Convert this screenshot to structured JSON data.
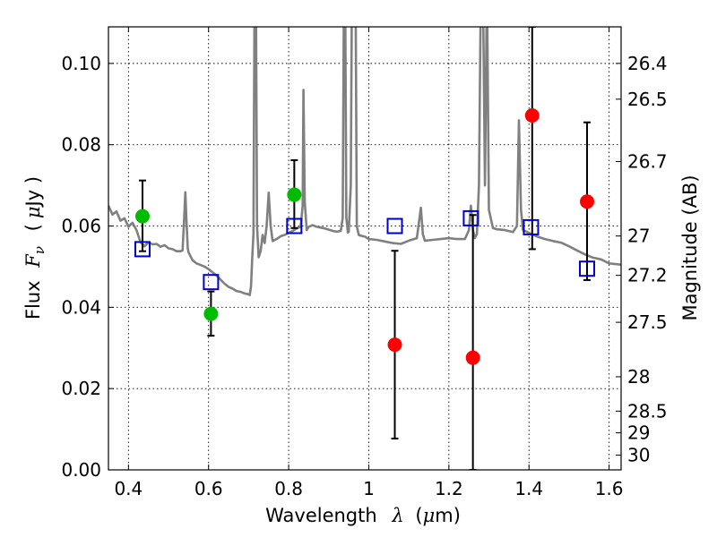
{
  "chart_data": {
    "type": "scatter",
    "xlabel": {
      "text": "Wavelength",
      "symbol": "λ",
      "unit_open": "(",
      "unit_mu": "μ",
      "unit_rest": "m)"
    },
    "ylabel": {
      "text": "Flux",
      "symbol": "F",
      "subscript": "ν",
      "unit_open": "(",
      "unit_mu": "μ",
      "unit_rest": "Jy )"
    },
    "y2label": "Magnitude (AB)",
    "xlim": [
      0.35,
      1.63
    ],
    "ylim": [
      0.0,
      0.109
    ],
    "x_ticks": [
      0.4,
      0.6,
      0.8,
      1.0,
      1.2,
      1.4,
      1.6
    ],
    "x_tick_labels": [
      "0.4",
      "0.6",
      "0.8",
      "1",
      "1.2",
      "1.4",
      "1.6"
    ],
    "y_ticks": [
      0.0,
      0.02,
      0.04,
      0.06,
      0.08,
      0.1
    ],
    "y_tick_labels": [
      "0.00",
      "0.02",
      "0.04",
      "0.06",
      "0.08",
      "0.10"
    ],
    "y2_ticks": [
      {
        "label": "26.4",
        "mag": 26.4
      },
      {
        "label": "26.5",
        "mag": 26.5
      },
      {
        "label": "26.7",
        "mag": 26.7
      },
      {
        "label": "27",
        "mag": 27.0
      },
      {
        "label": "27.2",
        "mag": 27.2
      },
      {
        "label": "27.5",
        "mag": 27.5
      },
      {
        "label": "28",
        "mag": 28.0
      },
      {
        "label": "28.5",
        "mag": 28.5
      },
      {
        "label": "29",
        "mag": 29.0
      },
      {
        "label": "30",
        "mag": 30.0
      }
    ],
    "grid": true,
    "colors": {
      "model": "#808080",
      "hst": "#00bb00",
      "nir": "#ff0000",
      "model_phot": "#0000cc",
      "errorbar": "#000000"
    },
    "series": [
      {
        "kind": "errorbar_points",
        "color": "#00bb00",
        "points": [
          {
            "x": 0.435,
            "y": 0.0624,
            "ylo": 0.0538,
            "yhi": 0.0712
          },
          {
            "x": 0.606,
            "y": 0.0384,
            "ylo": 0.033,
            "yhi": 0.0439
          },
          {
            "x": 0.814,
            "y": 0.0677,
            "ylo": 0.0595,
            "yhi": 0.0762
          }
        ]
      },
      {
        "kind": "errorbar_points",
        "color": "#ff0000",
        "points": [
          {
            "x": 1.065,
            "y": 0.0308,
            "ylo": 0.0077,
            "yhi": 0.0539
          },
          {
            "x": 1.26,
            "y": 0.0276,
            "ylo": 0.0,
            "yhi": 0.0627
          },
          {
            "x": 1.408,
            "y": 0.0872,
            "ylo": 0.0543,
            "yhi": 0.109
          },
          {
            "x": 1.545,
            "y": 0.066,
            "ylo": 0.0467,
            "yhi": 0.0855
          }
        ]
      },
      {
        "kind": "model_photometry",
        "color": "#0000cc",
        "points": [
          {
            "x": 0.435,
            "y": 0.0543
          },
          {
            "x": 0.606,
            "y": 0.0462
          },
          {
            "x": 0.814,
            "y": 0.06
          },
          {
            "x": 1.065,
            "y": 0.06
          },
          {
            "x": 1.255,
            "y": 0.0619
          },
          {
            "x": 1.405,
            "y": 0.0597
          },
          {
            "x": 1.545,
            "y": 0.0495
          }
        ]
      },
      {
        "kind": "model_spectrum",
        "color": "#808080",
        "points": [
          [
            0.35,
            0.065
          ],
          [
            0.36,
            0.0628
          ],
          [
            0.37,
            0.0636
          ],
          [
            0.38,
            0.0613
          ],
          [
            0.39,
            0.0619
          ],
          [
            0.4,
            0.0598
          ],
          [
            0.41,
            0.0608
          ],
          [
            0.42,
            0.059
          ],
          [
            0.43,
            0.056
          ],
          [
            0.44,
            0.055
          ],
          [
            0.45,
            0.056
          ],
          [
            0.46,
            0.0555
          ],
          [
            0.47,
            0.0556
          ],
          [
            0.48,
            0.0549
          ],
          [
            0.49,
            0.0553
          ],
          [
            0.5,
            0.0545
          ],
          [
            0.51,
            0.0543
          ],
          [
            0.52,
            0.0538
          ],
          [
            0.53,
            0.0538
          ],
          [
            0.535,
            0.054
          ],
          [
            0.539,
            0.062
          ],
          [
            0.542,
            0.0683
          ],
          [
            0.545,
            0.061
          ],
          [
            0.548,
            0.0545
          ],
          [
            0.55,
            0.0535
          ],
          [
            0.56,
            0.0516
          ],
          [
            0.57,
            0.0508
          ],
          [
            0.58,
            0.0504
          ],
          [
            0.59,
            0.05
          ],
          [
            0.6,
            0.0494
          ],
          [
            0.61,
            0.0486
          ],
          [
            0.62,
            0.0478
          ],
          [
            0.63,
            0.0468
          ],
          [
            0.64,
            0.0458
          ],
          [
            0.65,
            0.045
          ],
          [
            0.66,
            0.0446
          ],
          [
            0.67,
            0.044
          ],
          [
            0.68,
            0.0438
          ],
          [
            0.69,
            0.0434
          ],
          [
            0.7,
            0.0432
          ],
          [
            0.703,
            0.043
          ],
          [
            0.706,
            0.0452
          ],
          [
            0.709,
            0.052
          ],
          [
            0.712,
            0.058
          ],
          [
            0.715,
            0.12
          ],
          [
            0.718,
            0.12
          ],
          [
            0.721,
            0.06
          ],
          [
            0.725,
            0.0523
          ],
          [
            0.73,
            0.0538
          ],
          [
            0.735,
            0.0578
          ],
          [
            0.74,
            0.0558
          ],
          [
            0.745,
            0.06
          ],
          [
            0.75,
            0.0682
          ],
          [
            0.755,
            0.06
          ],
          [
            0.76,
            0.0563
          ],
          [
            0.77,
            0.0568
          ],
          [
            0.78,
            0.0575
          ],
          [
            0.79,
            0.0578
          ],
          [
            0.8,
            0.0583
          ],
          [
            0.81,
            0.0588
          ],
          [
            0.82,
            0.0594
          ],
          [
            0.83,
            0.0598
          ],
          [
            0.835,
            0.065
          ],
          [
            0.837,
            0.0935
          ],
          [
            0.84,
            0.066
          ],
          [
            0.845,
            0.059
          ],
          [
            0.85,
            0.0598
          ],
          [
            0.86,
            0.0602
          ],
          [
            0.87,
            0.0598
          ],
          [
            0.88,
            0.0596
          ],
          [
            0.89,
            0.0594
          ],
          [
            0.9,
            0.0591
          ],
          [
            0.91,
            0.0588
          ],
          [
            0.92,
            0.0586
          ],
          [
            0.93,
            0.0588
          ],
          [
            0.935,
            0.062
          ],
          [
            0.938,
            0.12
          ],
          [
            0.941,
            0.12
          ],
          [
            0.944,
            0.062
          ],
          [
            0.948,
            0.0584
          ],
          [
            0.95,
            0.0586
          ],
          [
            0.955,
            0.07
          ],
          [
            0.958,
            0.12
          ],
          [
            0.961,
            0.12
          ],
          [
            0.964,
            0.12
          ],
          [
            0.967,
            0.12
          ],
          [
            0.97,
            0.06
          ],
          [
            0.975,
            0.0578
          ],
          [
            0.98,
            0.0576
          ],
          [
            0.99,
            0.0574
          ],
          [
            1.0,
            0.0568
          ],
          [
            1.02,
            0.0566
          ],
          [
            1.04,
            0.0562
          ],
          [
            1.06,
            0.0558
          ],
          [
            1.08,
            0.0556
          ],
          [
            1.1,
            0.0564
          ],
          [
            1.12,
            0.057
          ],
          [
            1.13,
            0.0645
          ],
          [
            1.135,
            0.058
          ],
          [
            1.14,
            0.0564
          ],
          [
            1.16,
            0.0566
          ],
          [
            1.18,
            0.0568
          ],
          [
            1.2,
            0.057
          ],
          [
            1.22,
            0.0568
          ],
          [
            1.24,
            0.0568
          ],
          [
            1.25,
            0.059
          ],
          [
            1.255,
            0.065
          ],
          [
            1.26,
            0.059
          ],
          [
            1.265,
            0.057
          ],
          [
            1.27,
            0.058
          ],
          [
            1.275,
            0.07
          ],
          [
            1.28,
            0.12
          ],
          [
            1.285,
            0.12
          ],
          [
            1.29,
            0.07
          ],
          [
            1.295,
            0.12
          ],
          [
            1.3,
            0.064
          ],
          [
            1.31,
            0.0595
          ],
          [
            1.32,
            0.0592
          ],
          [
            1.34,
            0.059
          ],
          [
            1.36,
            0.0585
          ],
          [
            1.37,
            0.06
          ],
          [
            1.375,
            0.086
          ],
          [
            1.38,
            0.064
          ],
          [
            1.385,
            0.059
          ],
          [
            1.4,
            0.0583
          ],
          [
            1.42,
            0.0574
          ],
          [
            1.44,
            0.0568
          ],
          [
            1.46,
            0.0563
          ],
          [
            1.48,
            0.0559
          ],
          [
            1.5,
            0.055
          ],
          [
            1.52,
            0.054
          ],
          [
            1.54,
            0.053
          ],
          [
            1.56,
            0.0522
          ],
          [
            1.58,
            0.0518
          ],
          [
            1.6,
            0.0508
          ],
          [
            1.63,
            0.0505
          ]
        ]
      }
    ]
  }
}
